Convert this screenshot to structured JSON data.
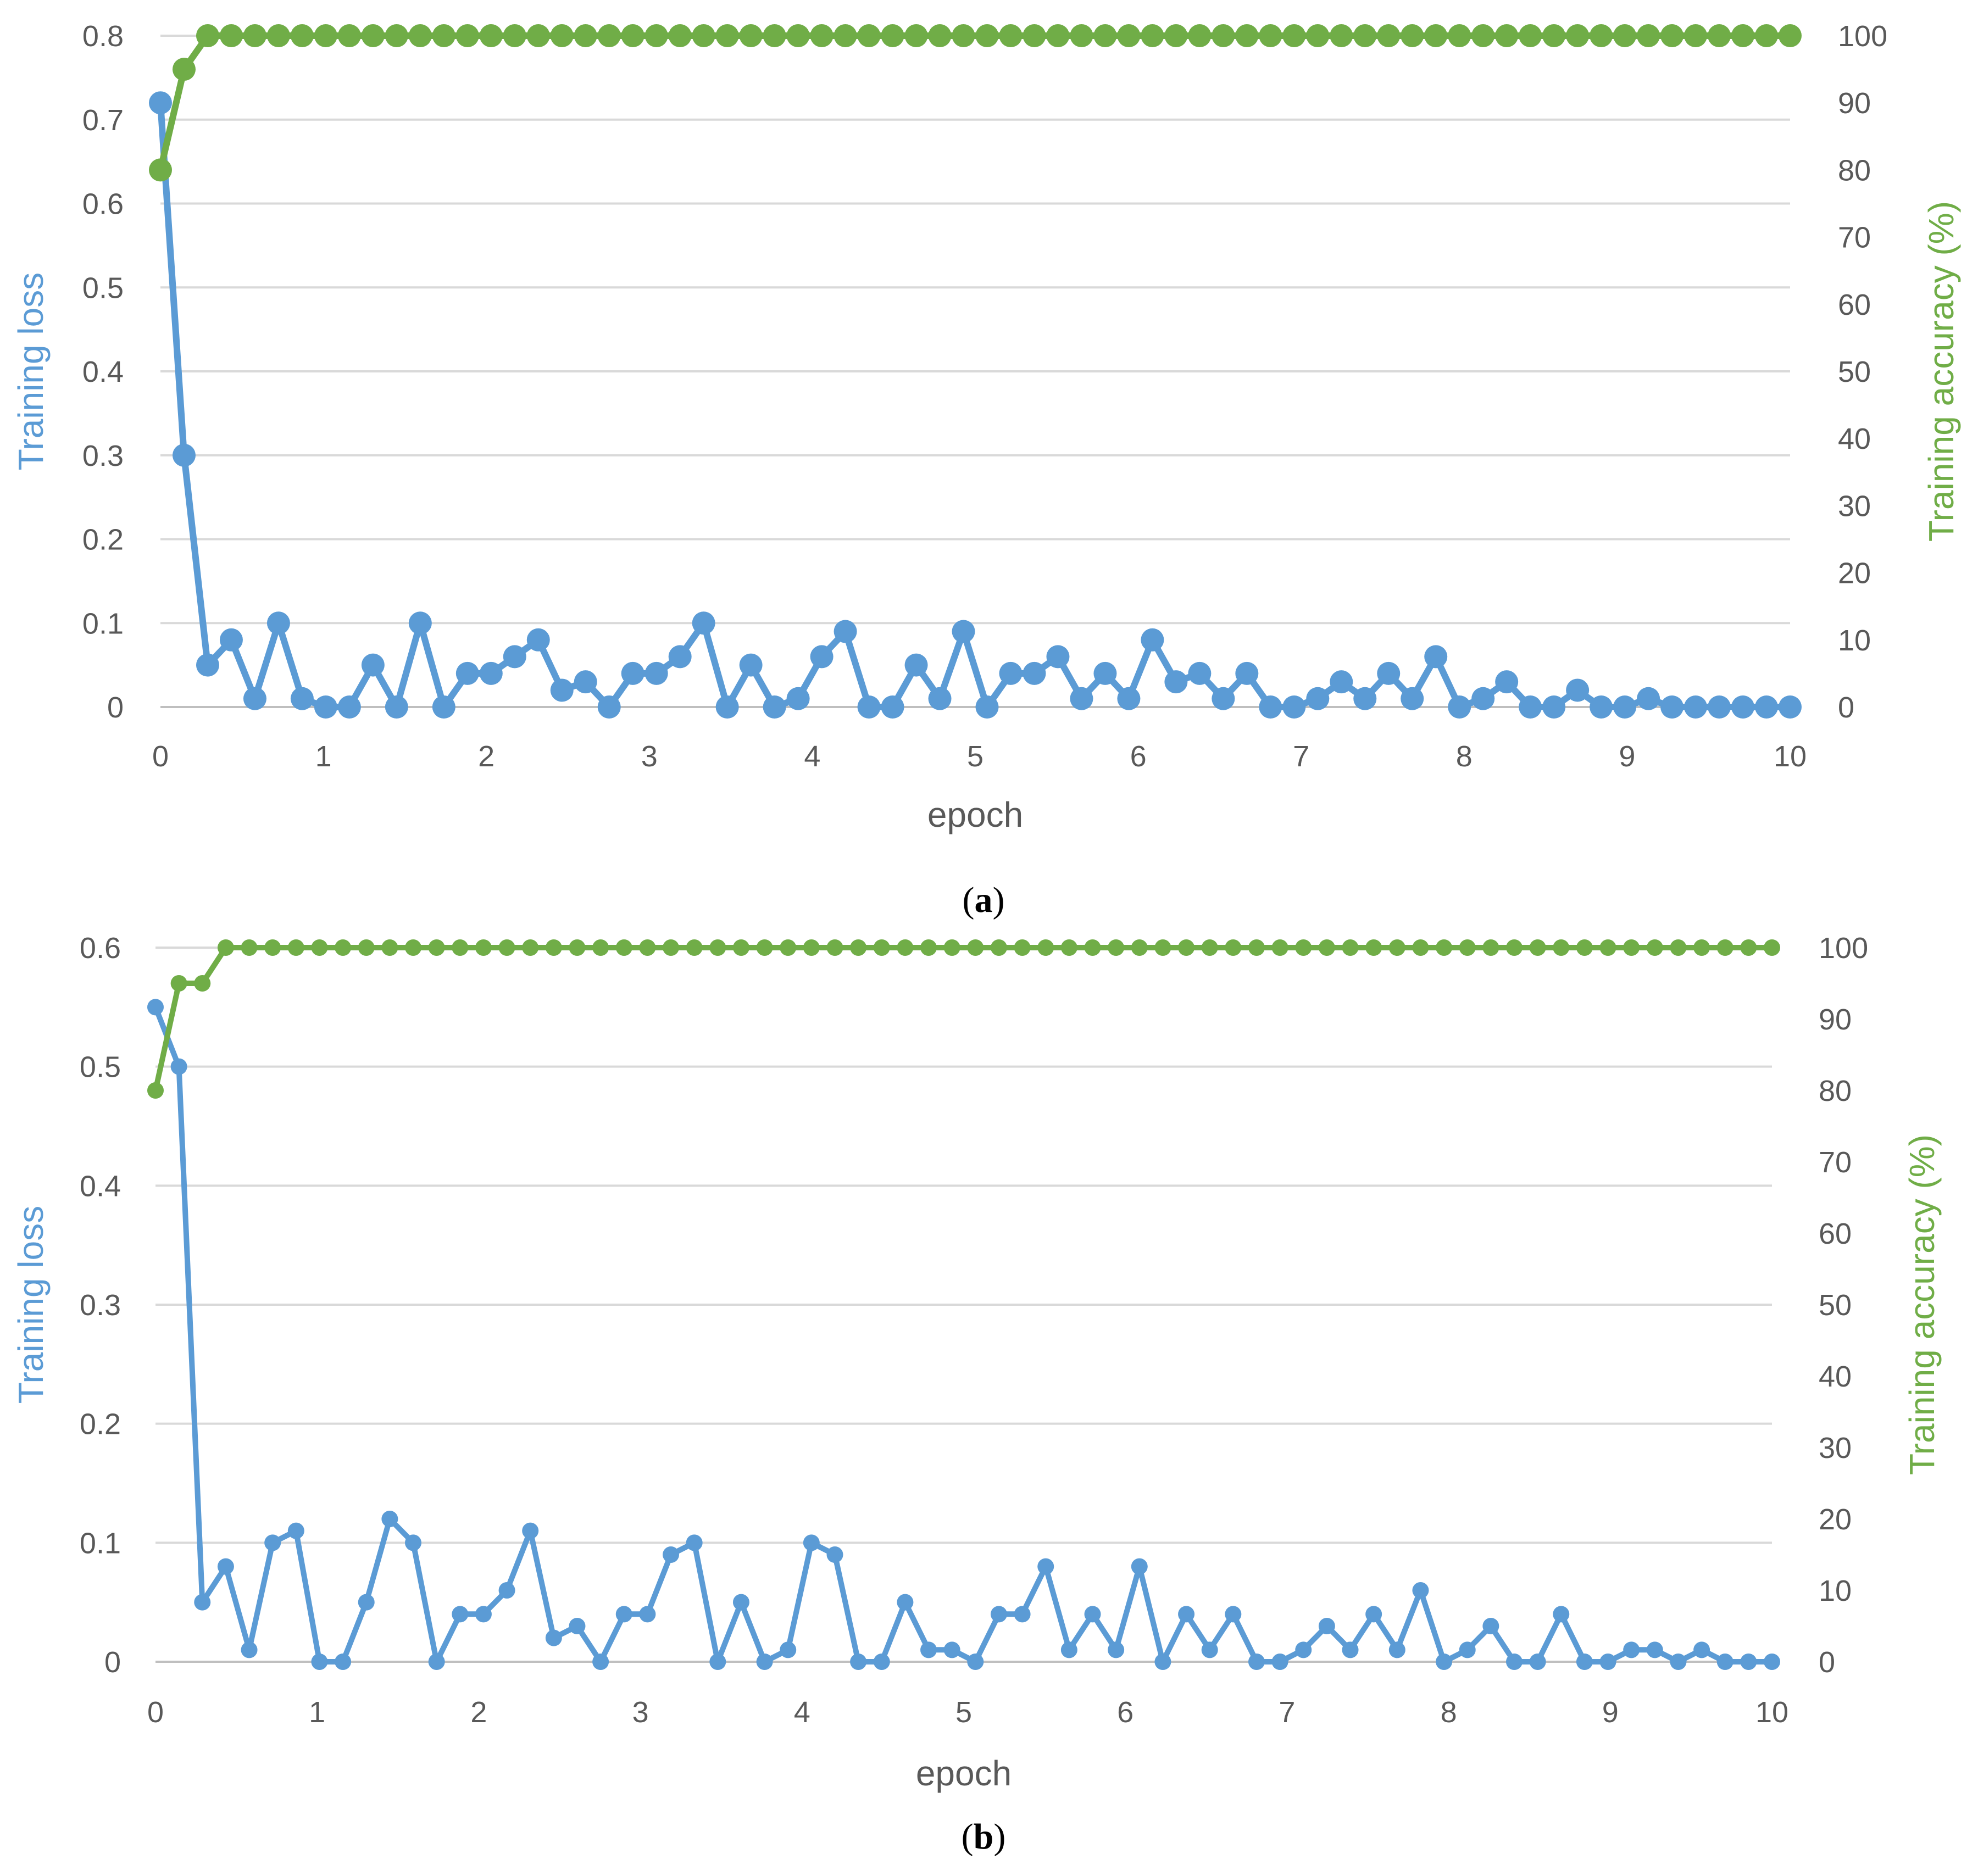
{
  "colors": {
    "loss": "#5b9bd5",
    "accuracy": "#70ad47",
    "grid": "#d9d9d9",
    "tick_text": "#595959"
  },
  "chart_data": [
    {
      "type": "line",
      "panel_label": "a",
      "xlabel": "epoch",
      "ylabel": "Training loss",
      "y2label": "Training accuracy (%)",
      "xlim": [
        0,
        10
      ],
      "ylim": [
        0,
        0.8
      ],
      "y2lim": [
        0,
        100
      ],
      "x_ticks": [
        0,
        1,
        2,
        3,
        4,
        5,
        6,
        7,
        8,
        9,
        10
      ],
      "y_ticks": [
        "0",
        "0.1",
        "0.2",
        "0.3",
        "0.4",
        "0.5",
        "0.6",
        "0.7",
        "0.8"
      ],
      "y2_ticks": [
        "0",
        "10",
        "20",
        "30",
        "40",
        "50",
        "60",
        "70",
        "80",
        "90",
        "100"
      ],
      "grid": true,
      "legend": "none",
      "series": [
        {
          "axis": "left",
          "values": [
            0.72,
            0.3,
            0.05,
            0.08,
            0.01,
            0.1,
            0.01,
            0.0,
            0.0,
            0.05,
            0.0,
            0.1,
            0.0,
            0.04,
            0.04,
            0.06,
            0.08,
            0.02,
            0.03,
            0.0,
            0.04,
            0.04,
            0.06,
            0.1,
            0.0,
            0.05,
            0.0,
            0.01,
            0.06,
            0.09,
            0.0,
            0.0,
            0.05,
            0.01,
            0.09,
            0.0,
            0.04,
            0.04,
            0.06,
            0.01,
            0.04,
            0.01,
            0.08,
            0.03,
            0.04,
            0.01,
            0.04,
            0.0,
            0.0,
            0.01,
            0.03,
            0.01,
            0.04,
            0.01,
            0.06,
            0.0,
            0.01,
            0.03,
            0.0,
            0.0,
            0.02,
            0.0,
            0.0,
            0.01,
            0.0,
            0.0,
            0.0,
            0.0,
            0.0,
            0.0
          ]
        },
        {
          "axis": "right",
          "values": [
            80,
            95,
            100,
            100,
            100,
            100,
            100,
            100,
            100,
            100,
            100,
            100,
            100,
            100,
            100,
            100,
            100,
            100,
            100,
            100,
            100,
            100,
            100,
            100,
            100,
            100,
            100,
            100,
            100,
            100,
            100,
            100,
            100,
            100,
            100,
            100,
            100,
            100,
            100,
            100,
            100,
            100,
            100,
            100,
            100,
            100,
            100,
            100,
            100,
            100,
            100,
            100,
            100,
            100,
            100,
            100,
            100,
            100,
            100,
            100,
            100,
            100,
            100,
            100,
            100,
            100,
            100,
            100,
            100,
            100
          ]
        }
      ]
    },
    {
      "type": "line",
      "panel_label": "b",
      "xlabel": "epoch",
      "ylabel": "Training loss",
      "y2label": "Training accuracy (%)",
      "xlim": [
        0,
        10
      ],
      "ylim": [
        0,
        0.6
      ],
      "y2lim": [
        0,
        100
      ],
      "x_ticks": [
        0,
        1,
        2,
        3,
        4,
        5,
        6,
        7,
        8,
        9,
        10
      ],
      "y_ticks": [
        "0",
        "0.1",
        "0.2",
        "0.3",
        "0.4",
        "0.5",
        "0.6"
      ],
      "y2_ticks": [
        "0",
        "10",
        "20",
        "30",
        "40",
        "50",
        "60",
        "70",
        "80",
        "90",
        "100"
      ],
      "grid": true,
      "legend": "none",
      "series": [
        {
          "axis": "left",
          "values": [
            0.55,
            0.5,
            0.05,
            0.08,
            0.01,
            0.1,
            0.11,
            0.0,
            0.0,
            0.05,
            0.12,
            0.1,
            0.0,
            0.04,
            0.04,
            0.06,
            0.11,
            0.02,
            0.03,
            0.0,
            0.04,
            0.04,
            0.09,
            0.1,
            0.0,
            0.05,
            0.0,
            0.01,
            0.1,
            0.09,
            0.0,
            0.0,
            0.05,
            0.01,
            0.01,
            0.0,
            0.04,
            0.04,
            0.08,
            0.01,
            0.04,
            0.01,
            0.08,
            0.0,
            0.04,
            0.01,
            0.04,
            0.0,
            0.0,
            0.01,
            0.03,
            0.01,
            0.04,
            0.01,
            0.06,
            0.0,
            0.01,
            0.03,
            0.0,
            0.0,
            0.04,
            0.0,
            0.0,
            0.01,
            0.01,
            0.0,
            0.01,
            0.0,
            0.0,
            0.0
          ]
        },
        {
          "axis": "right",
          "values": [
            80,
            95,
            95,
            100,
            100,
            100,
            100,
            100,
            100,
            100,
            100,
            100,
            100,
            100,
            100,
            100,
            100,
            100,
            100,
            100,
            100,
            100,
            100,
            100,
            100,
            100,
            100,
            100,
            100,
            100,
            100,
            100,
            100,
            100,
            100,
            100,
            100,
            100,
            100,
            100,
            100,
            100,
            100,
            100,
            100,
            100,
            100,
            100,
            100,
            100,
            100,
            100,
            100,
            100,
            100,
            100,
            100,
            100,
            100,
            100,
            100,
            100,
            100,
            100,
            100,
            100,
            100,
            100,
            100,
            100
          ]
        }
      ]
    }
  ]
}
